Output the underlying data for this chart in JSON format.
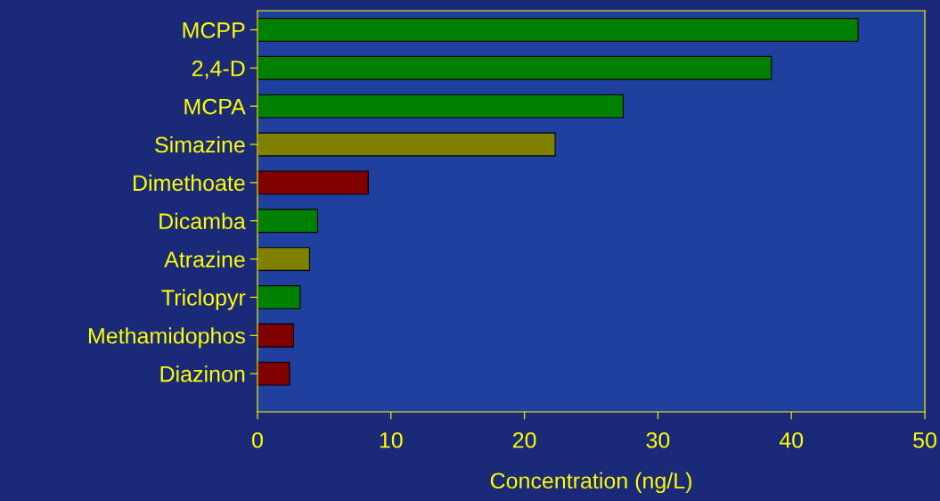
{
  "chart_data": {
    "type": "bar",
    "orientation": "horizontal",
    "xlabel": "Concentration (ng/L)",
    "categories": [
      "MCPP",
      "2,4-D",
      "MCPA",
      "Simazine",
      "Dimethoate",
      "Dicamba",
      "Atrazine",
      "Triclopyr",
      "Methamidophos",
      "Diazinon"
    ],
    "values": [
      45.0,
      38.5,
      27.4,
      22.3,
      8.3,
      4.5,
      3.9,
      3.2,
      2.7,
      2.4
    ],
    "colors": [
      "#008000",
      "#008000",
      "#008000",
      "#808000",
      "#800000",
      "#008000",
      "#808000",
      "#008000",
      "#800000",
      "#800000"
    ],
    "xlim": [
      0,
      50
    ],
    "xticks": [
      0,
      10,
      20,
      30,
      40,
      50
    ],
    "grid": false
  }
}
